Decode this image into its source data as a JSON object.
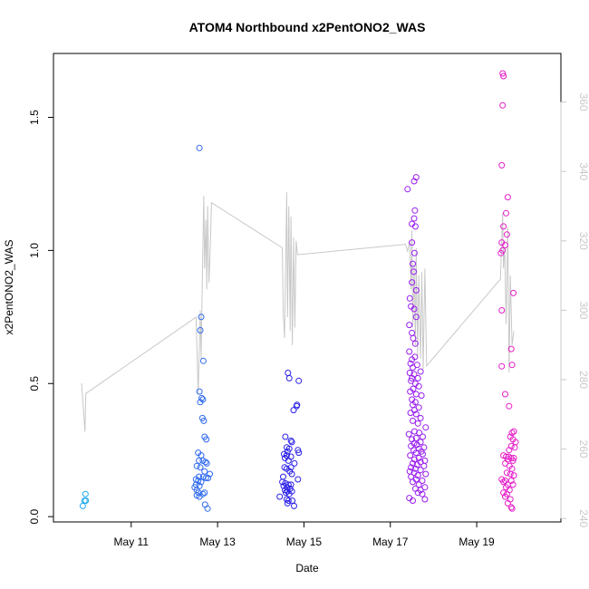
{
  "chart_data": {
    "type": "scatter",
    "title": "ATOM4 Northbound x2PentONO2_WAS",
    "xlabel": "Date",
    "ylabel": "x2PentONO2_WAS",
    "x_unit": "day of May",
    "xlim": [
      9.2,
      20.95
    ],
    "ylim": [
      -0.02,
      1.74
    ],
    "y2lim": [
      239,
      374
    ],
    "x_ticks": [
      {
        "value": 11,
        "label": "May 11"
      },
      {
        "value": 13,
        "label": "May 13"
      },
      {
        "value": 15,
        "label": "May 15"
      },
      {
        "value": 17,
        "label": "May 17"
      },
      {
        "value": 19,
        "label": "May 19"
      }
    ],
    "y_ticks": [
      {
        "value": 0.0,
        "label": "0.0"
      },
      {
        "value": 0.5,
        "label": "0.5"
      },
      {
        "value": 1.0,
        "label": "1.0"
      },
      {
        "value": 1.5,
        "label": "1.5"
      }
    ],
    "y2_ticks": [
      {
        "value": 240,
        "label": "240"
      },
      {
        "value": 260,
        "label": "260"
      },
      {
        "value": 280,
        "label": "280"
      },
      {
        "value": 300,
        "label": "300"
      },
      {
        "value": 320,
        "label": "320"
      },
      {
        "value": 340,
        "label": "340"
      },
      {
        "value": 360,
        "label": "360"
      }
    ],
    "grid": false,
    "legend": "none",
    "colors": {
      "flight1": "#1fa8ee",
      "flight2": "#2f6af0",
      "flight3": "#2a1fe6",
      "flight4": "#9a1ef0",
      "flight5": "#e61ec8",
      "secondary_line": "#c8c8c8",
      "secondary_axis": "#c8c8c8"
    },
    "series": [
      {
        "color": "#1fa8ee",
        "points": [
          [
            9.88,
            0.04
          ],
          [
            9.92,
            0.06
          ],
          [
            9.94,
            0.085
          ],
          [
            9.95,
            0.06
          ]
        ]
      },
      {
        "color": "#2f6af0",
        "points": [
          [
            12.58,
            1.385
          ],
          [
            12.62,
            0.75
          ],
          [
            12.6,
            0.7
          ],
          [
            12.67,
            0.585
          ],
          [
            12.58,
            0.47
          ],
          [
            12.63,
            0.445
          ],
          [
            12.66,
            0.44
          ],
          [
            12.6,
            0.43
          ],
          [
            12.65,
            0.37
          ],
          [
            12.68,
            0.36
          ],
          [
            12.7,
            0.3
          ],
          [
            12.74,
            0.29
          ],
          [
            12.55,
            0.24
          ],
          [
            12.62,
            0.23
          ],
          [
            12.57,
            0.21
          ],
          [
            12.66,
            0.21
          ],
          [
            12.72,
            0.205
          ],
          [
            12.75,
            0.2
          ],
          [
            12.52,
            0.19
          ],
          [
            12.6,
            0.185
          ],
          [
            12.7,
            0.17
          ],
          [
            12.82,
            0.16
          ],
          [
            12.57,
            0.15
          ],
          [
            12.67,
            0.15
          ],
          [
            12.73,
            0.145
          ],
          [
            12.78,
            0.145
          ],
          [
            12.5,
            0.14
          ],
          [
            12.55,
            0.135
          ],
          [
            12.62,
            0.13
          ],
          [
            12.5,
            0.12
          ],
          [
            12.58,
            0.115
          ],
          [
            12.47,
            0.11
          ],
          [
            12.52,
            0.1
          ],
          [
            12.56,
            0.09
          ],
          [
            12.66,
            0.085
          ],
          [
            12.7,
            0.09
          ],
          [
            12.52,
            0.08
          ],
          [
            12.58,
            0.075
          ],
          [
            12.71,
            0.045
          ],
          [
            12.77,
            0.03
          ]
        ]
      },
      {
        "color": "#2a1fe6",
        "points": [
          [
            14.63,
            0.54
          ],
          [
            14.66,
            0.52
          ],
          [
            14.88,
            0.51
          ],
          [
            14.84,
            0.42
          ],
          [
            14.83,
            0.415
          ],
          [
            14.76,
            0.4
          ],
          [
            14.57,
            0.3
          ],
          [
            14.7,
            0.285
          ],
          [
            14.72,
            0.28
          ],
          [
            14.6,
            0.26
          ],
          [
            14.66,
            0.255
          ],
          [
            14.86,
            0.25
          ],
          [
            14.62,
            0.245
          ],
          [
            14.88,
            0.24
          ],
          [
            14.54,
            0.235
          ],
          [
            14.6,
            0.23
          ],
          [
            14.7,
            0.225
          ],
          [
            14.56,
            0.22
          ],
          [
            14.64,
            0.21
          ],
          [
            14.78,
            0.2
          ],
          [
            14.55,
            0.185
          ],
          [
            14.6,
            0.18
          ],
          [
            14.7,
            0.185
          ],
          [
            14.67,
            0.17
          ],
          [
            14.72,
            0.16
          ],
          [
            14.52,
            0.15
          ],
          [
            14.86,
            0.14
          ],
          [
            14.5,
            0.13
          ],
          [
            14.57,
            0.125
          ],
          [
            14.64,
            0.12
          ],
          [
            14.7,
            0.12
          ],
          [
            14.53,
            0.115
          ],
          [
            14.61,
            0.11
          ],
          [
            14.68,
            0.105
          ],
          [
            14.56,
            0.1
          ],
          [
            14.62,
            0.095
          ],
          [
            14.72,
            0.095
          ],
          [
            14.58,
            0.09
          ],
          [
            14.66,
            0.085
          ],
          [
            14.44,
            0.075
          ],
          [
            14.6,
            0.065
          ],
          [
            14.64,
            0.06
          ],
          [
            14.73,
            0.06
          ],
          [
            14.62,
            0.05
          ],
          [
            14.77,
            0.04
          ]
        ]
      },
      {
        "color": "#9a1ef0",
        "points": [
          [
            17.6,
            1.275
          ],
          [
            17.55,
            1.26
          ],
          [
            17.4,
            1.23
          ],
          [
            17.57,
            1.15
          ],
          [
            17.55,
            1.12
          ],
          [
            17.5,
            1.1
          ],
          [
            17.58,
            1.09
          ],
          [
            17.5,
            1.03
          ],
          [
            17.56,
            0.99
          ],
          [
            17.52,
            0.95
          ],
          [
            17.54,
            0.92
          ],
          [
            17.5,
            0.88
          ],
          [
            17.6,
            0.85
          ],
          [
            17.45,
            0.82
          ],
          [
            17.48,
            0.79
          ],
          [
            17.55,
            0.78
          ],
          [
            17.6,
            0.75
          ],
          [
            17.44,
            0.72
          ],
          [
            17.5,
            0.69
          ],
          [
            17.53,
            0.67
          ],
          [
            17.58,
            0.65
          ],
          [
            17.44,
            0.62
          ],
          [
            17.57,
            0.6
          ],
          [
            17.5,
            0.59
          ],
          [
            17.47,
            0.575
          ],
          [
            17.62,
            0.57
          ],
          [
            17.52,
            0.56
          ],
          [
            17.7,
            0.545
          ],
          [
            17.45,
            0.54
          ],
          [
            17.55,
            0.535
          ],
          [
            17.5,
            0.52
          ],
          [
            17.64,
            0.52
          ],
          [
            17.48,
            0.51
          ],
          [
            17.58,
            0.5
          ],
          [
            17.66,
            0.49
          ],
          [
            17.53,
            0.48
          ],
          [
            17.46,
            0.47
          ],
          [
            17.6,
            0.46
          ],
          [
            17.72,
            0.455
          ],
          [
            17.5,
            0.44
          ],
          [
            17.58,
            0.43
          ],
          [
            17.52,
            0.42
          ],
          [
            17.66,
            0.41
          ],
          [
            17.56,
            0.4
          ],
          [
            17.47,
            0.39
          ],
          [
            17.6,
            0.385
          ],
          [
            17.7,
            0.37
          ],
          [
            17.52,
            0.36
          ],
          [
            17.64,
            0.35
          ],
          [
            17.82,
            0.335
          ],
          [
            17.56,
            0.32
          ],
          [
            17.67,
            0.315
          ],
          [
            17.43,
            0.31
          ],
          [
            17.75,
            0.3
          ],
          [
            17.6,
            0.295
          ],
          [
            17.5,
            0.29
          ],
          [
            17.7,
            0.28
          ],
          [
            17.55,
            0.275
          ],
          [
            17.62,
            0.27
          ],
          [
            17.48,
            0.265
          ],
          [
            17.78,
            0.26
          ],
          [
            17.66,
            0.255
          ],
          [
            17.54,
            0.25
          ],
          [
            17.72,
            0.245
          ],
          [
            17.6,
            0.24
          ],
          [
            17.75,
            0.235
          ],
          [
            17.46,
            0.23
          ],
          [
            17.66,
            0.22
          ],
          [
            17.56,
            0.215
          ],
          [
            17.8,
            0.21
          ],
          [
            17.7,
            0.205
          ],
          [
            17.52,
            0.2
          ],
          [
            17.62,
            0.195
          ],
          [
            17.78,
            0.19
          ],
          [
            17.48,
            0.185
          ],
          [
            17.58,
            0.18
          ],
          [
            17.7,
            0.175
          ],
          [
            17.45,
            0.17
          ],
          [
            17.55,
            0.165
          ],
          [
            17.82,
            0.16
          ],
          [
            17.64,
            0.155
          ],
          [
            17.48,
            0.15
          ],
          [
            17.6,
            0.14
          ],
          [
            17.74,
            0.135
          ],
          [
            17.52,
            0.13
          ],
          [
            17.66,
            0.12
          ],
          [
            17.8,
            0.11
          ],
          [
            17.58,
            0.105
          ],
          [
            17.7,
            0.1
          ],
          [
            17.64,
            0.09
          ],
          [
            17.74,
            0.085
          ],
          [
            17.44,
            0.07
          ],
          [
            17.8,
            0.065
          ],
          [
            17.52,
            0.06
          ]
        ]
      },
      {
        "color": "#e61ec8",
        "points": [
          [
            19.6,
            1.665
          ],
          [
            19.62,
            1.655
          ],
          [
            19.6,
            1.545
          ],
          [
            19.58,
            1.32
          ],
          [
            19.72,
            1.2
          ],
          [
            19.68,
            1.14
          ],
          [
            19.62,
            1.09
          ],
          [
            19.7,
            1.06
          ],
          [
            19.58,
            1.03
          ],
          [
            19.66,
            1.02
          ],
          [
            19.6,
            1.0
          ],
          [
            19.56,
            0.99
          ],
          [
            19.85,
            0.84
          ],
          [
            19.58,
            0.775
          ],
          [
            19.8,
            0.63
          ],
          [
            19.82,
            0.57
          ],
          [
            19.58,
            0.565
          ],
          [
            19.66,
            0.46
          ],
          [
            19.75,
            0.415
          ],
          [
            19.86,
            0.32
          ],
          [
            19.82,
            0.315
          ],
          [
            19.78,
            0.3
          ],
          [
            19.84,
            0.29
          ],
          [
            19.9,
            0.28
          ],
          [
            19.8,
            0.265
          ],
          [
            19.88,
            0.26
          ],
          [
            19.75,
            0.25
          ],
          [
            19.62,
            0.23
          ],
          [
            19.68,
            0.225
          ],
          [
            19.74,
            0.225
          ],
          [
            19.8,
            0.22
          ],
          [
            19.86,
            0.22
          ],
          [
            19.72,
            0.215
          ],
          [
            19.84,
            0.21
          ],
          [
            19.66,
            0.2
          ],
          [
            19.76,
            0.19
          ],
          [
            19.82,
            0.18
          ],
          [
            19.7,
            0.165
          ],
          [
            19.78,
            0.16
          ],
          [
            19.86,
            0.155
          ],
          [
            19.58,
            0.14
          ],
          [
            19.66,
            0.135
          ],
          [
            19.8,
            0.135
          ],
          [
            19.62,
            0.13
          ],
          [
            19.72,
            0.12
          ],
          [
            19.84,
            0.12
          ],
          [
            19.68,
            0.11
          ],
          [
            19.76,
            0.1
          ],
          [
            19.62,
            0.09
          ],
          [
            19.7,
            0.085
          ],
          [
            19.66,
            0.075
          ],
          [
            19.78,
            0.065
          ],
          [
            19.72,
            0.05
          ],
          [
            19.8,
            0.035
          ],
          [
            19.82,
            0.03
          ]
        ]
      }
    ],
    "secondary_line": {
      "color": "#c8c8c8",
      "points": [
        [
          9.85,
          279
        ],
        [
          9.93,
          265
        ],
        [
          9.95,
          276
        ],
        [
          12.5,
          298
        ],
        [
          12.52,
          290
        ],
        [
          12.55,
          276
        ],
        [
          12.58,
          290
        ],
        [
          12.6,
          300
        ],
        [
          12.62,
          286
        ],
        [
          12.64,
          302
        ],
        [
          12.66,
          318
        ],
        [
          12.68,
          333
        ],
        [
          12.7,
          312
        ],
        [
          12.73,
          326
        ],
        [
          12.75,
          306
        ],
        [
          12.77,
          330
        ],
        [
          12.8,
          308
        ],
        [
          12.83,
          318
        ],
        [
          12.86,
          331
        ],
        [
          14.5,
          318
        ],
        [
          14.52,
          300
        ],
        [
          14.55,
          292
        ],
        [
          14.58,
          316
        ],
        [
          14.6,
          334
        ],
        [
          14.62,
          298
        ],
        [
          14.65,
          330
        ],
        [
          14.68,
          294
        ],
        [
          14.7,
          327
        ],
        [
          14.73,
          290
        ],
        [
          14.76,
          321
        ],
        [
          14.79,
          295
        ],
        [
          14.82,
          320
        ],
        [
          14.85,
          316
        ],
        [
          17.35,
          319
        ],
        [
          17.4,
          317
        ],
        [
          17.45,
          320
        ],
        [
          17.48,
          306
        ],
        [
          17.5,
          323
        ],
        [
          17.52,
          295
        ],
        [
          17.55,
          313
        ],
        [
          17.58,
          290
        ],
        [
          17.6,
          318
        ],
        [
          17.63,
          287
        ],
        [
          17.66,
          310
        ],
        [
          17.7,
          286
        ],
        [
          17.73,
          311
        ],
        [
          17.76,
          283
        ],
        [
          17.8,
          312
        ],
        [
          17.84,
          284
        ],
        [
          19.55,
          309
        ],
        [
          19.6,
          328
        ],
        [
          19.62,
          312
        ],
        [
          19.65,
          318
        ],
        [
          19.68,
          296
        ],
        [
          19.72,
          324
        ],
        [
          19.75,
          282
        ],
        [
          19.78,
          310
        ],
        [
          19.82,
          290
        ],
        [
          19.86,
          294
        ]
      ]
    }
  }
}
